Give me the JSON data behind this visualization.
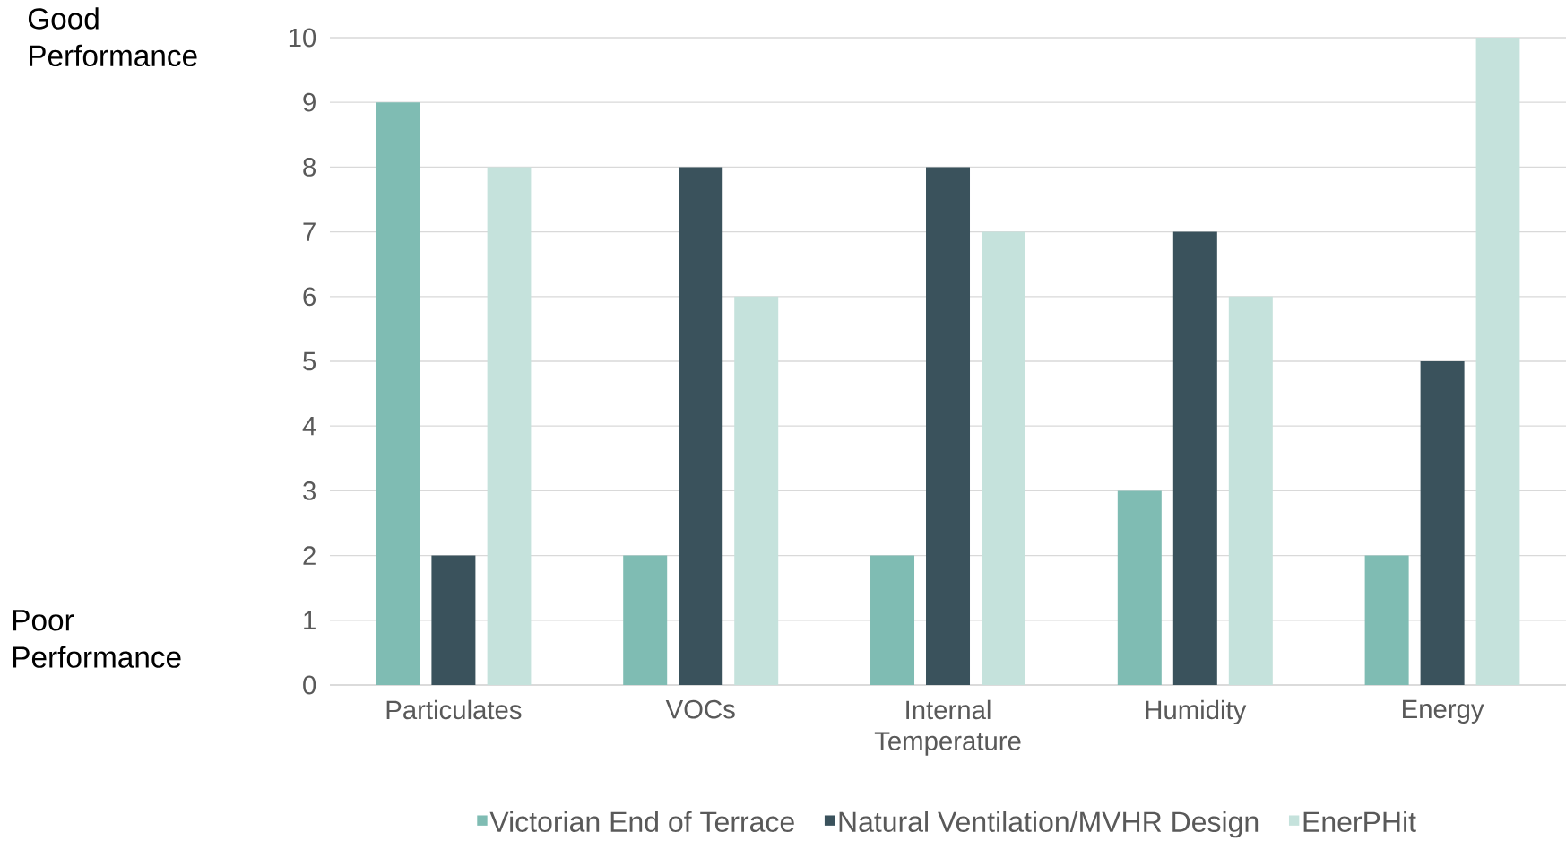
{
  "chart_data": {
    "type": "bar",
    "categories": [
      "Particulates",
      "VOCs",
      "Internal Temperature",
      "Humidity",
      "Energy"
    ],
    "series": [
      {
        "name": "Victorian End of Terrace",
        "color": "#7fbcb3",
        "values": [
          9,
          2,
          2,
          3,
          2
        ]
      },
      {
        "name": "Natural Ventilation/MVHR Design",
        "color": "#3a525c",
        "values": [
          2,
          8,
          8,
          7,
          5
        ]
      },
      {
        "name": "EnerPHit",
        "color": "#c5e2dc",
        "values": [
          8,
          6,
          7,
          6,
          10
        ]
      }
    ],
    "ylim": [
      0,
      10
    ],
    "yticks": [
      0,
      1,
      2,
      3,
      4,
      5,
      6,
      7,
      8,
      9,
      10
    ],
    "grid": "y",
    "legend": "bottom",
    "annotations": [
      "Good Performance",
      "Poor Performance"
    ]
  }
}
